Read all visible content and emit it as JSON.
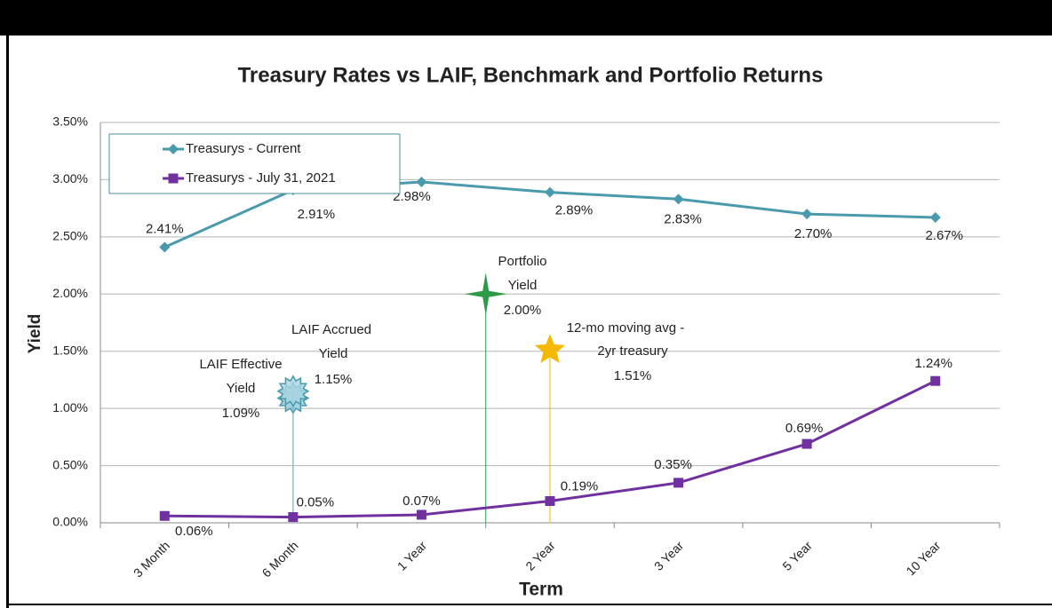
{
  "chart_data": {
    "type": "line",
    "title": "Treasury Rates vs LAIF, Benchmark and Portfolio Returns",
    "x_label": "Term",
    "y_label": "Yield",
    "categories": [
      "3 Month",
      "6 Month",
      "1 Year",
      "2 Year",
      "3 Year",
      "5 Year",
      "10 Year"
    ],
    "series": [
      {
        "name": "Treasurys - Current",
        "color": "#4a9aad",
        "marker": "diamond",
        "values": [
          2.41,
          2.91,
          2.98,
          2.89,
          2.83,
          2.7,
          2.67
        ],
        "value_labels": [
          "2.41%",
          "2.91%",
          "2.98%",
          "2.89%",
          "2.83%",
          "2.70%",
          "2.67%"
        ]
      },
      {
        "name": "Treasurys - July 31, 2021",
        "color": "#7030a0",
        "marker": "square",
        "values": [
          0.06,
          0.05,
          0.07,
          0.19,
          0.35,
          0.69,
          1.24
        ],
        "value_labels": [
          "0.06%",
          "0.05%",
          "0.07%",
          "0.19%",
          "0.35%",
          "0.69%",
          "1.24%"
        ]
      }
    ],
    "points": [
      {
        "label": [
          "LAIF Effective",
          "Yield"
        ],
        "value": 1.09,
        "value_label": "1.09%",
        "color": "#8fc8d8",
        "marker": "burst"
      },
      {
        "label": [
          "LAIF Accrued",
          "Yield"
        ],
        "value": 1.15,
        "value_label": "1.15%",
        "color": "#a8d4e0",
        "marker": "burst"
      },
      {
        "label": [
          "Portfolio",
          "Yield"
        ],
        "value": 2.0,
        "value_label": "2.00%",
        "color": "#2e9a48",
        "marker": "star4"
      },
      {
        "label": [
          "12-mo moving avg -",
          "2yr treasury"
        ],
        "value": 1.51,
        "value_label": "1.51%",
        "color": "#f5b800",
        "marker": "star5"
      }
    ],
    "ylim": [
      0,
      3.5
    ],
    "yticks": [
      {
        "value": 0,
        "label": "0.00%"
      },
      {
        "value": 0.5,
        "label": "0.50%"
      },
      {
        "value": 1,
        "label": "1.00%"
      },
      {
        "value": 1.5,
        "label": "1.50%"
      },
      {
        "value": 2,
        "label": "2.00%"
      },
      {
        "value": 2.5,
        "label": "2.50%"
      },
      {
        "value": 3,
        "label": "3.00%"
      },
      {
        "value": 3.5,
        "label": "3.50%"
      }
    ],
    "grid": true,
    "legend": "upper left"
  }
}
